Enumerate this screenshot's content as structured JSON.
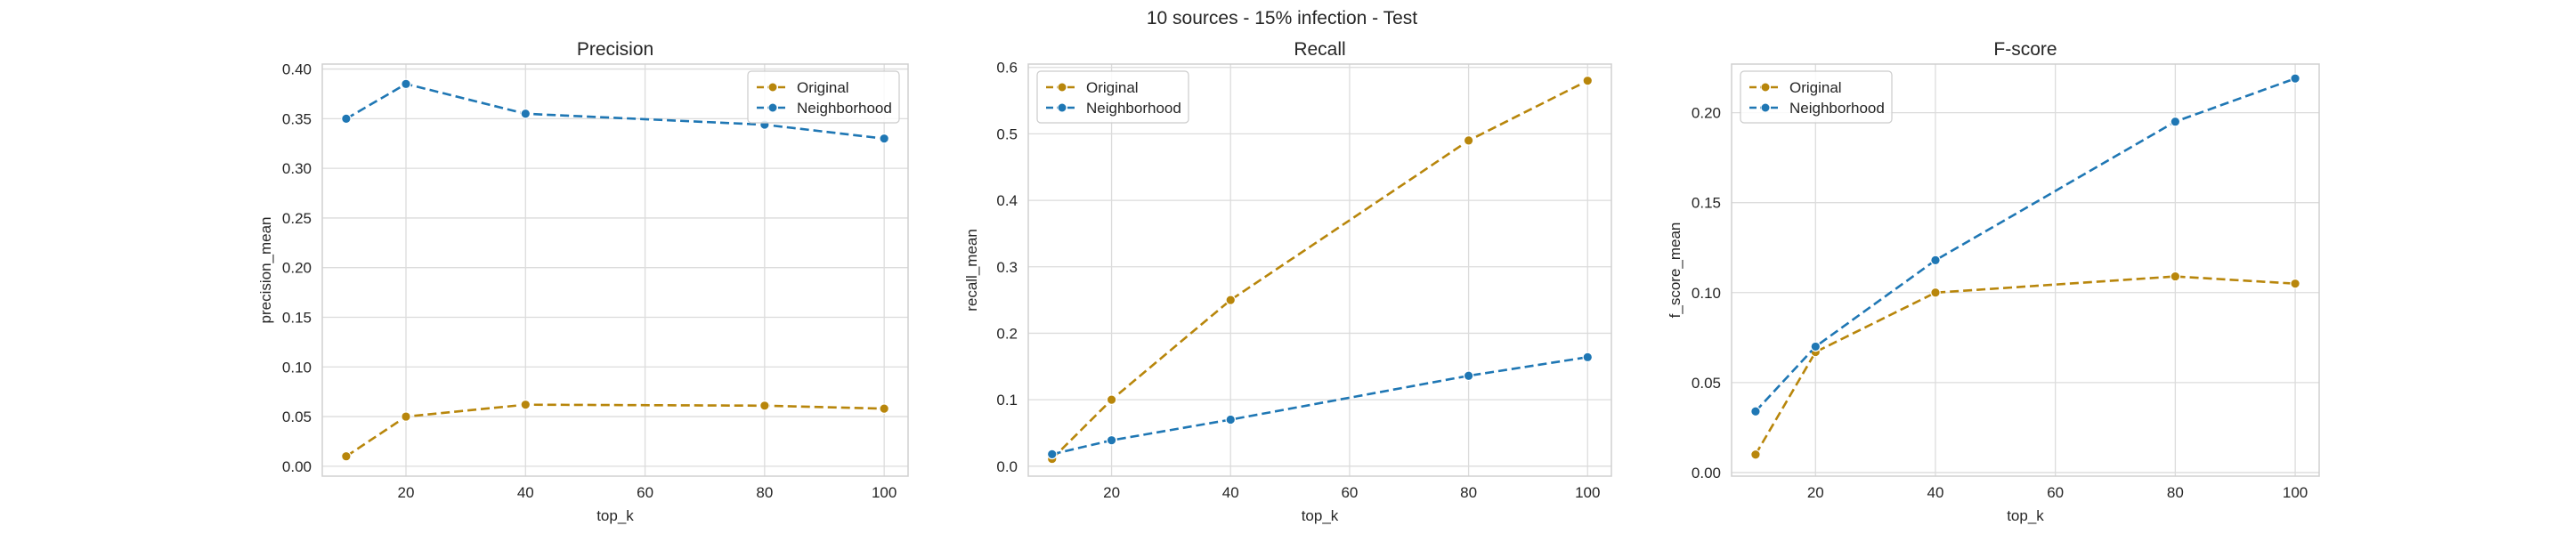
{
  "figure": {
    "suptitle": "10 sources - 15% infection - Test"
  },
  "colors": {
    "Original": "#b8860b",
    "Neighborhood": "#1f77b4",
    "grid": "#dcdcdc",
    "axes_edge": "#d0d0d0"
  },
  "chart_data": [
    {
      "type": "line",
      "title": "Precision",
      "xlabel": "top_k",
      "ylabel": "precision_mean",
      "x": [
        10,
        20,
        40,
        80,
        100
      ],
      "xlim": [
        6,
        104
      ],
      "ylim": [
        -0.01,
        0.405
      ],
      "xticks": [
        20,
        40,
        60,
        80,
        100
      ],
      "yticks": [
        0.0,
        0.05,
        0.1,
        0.15,
        0.2,
        0.25,
        0.3,
        0.35,
        0.4
      ],
      "ytick_labels": [
        "0.00",
        "0.05",
        "0.10",
        "0.15",
        "0.20",
        "0.25",
        "0.30",
        "0.35",
        "0.40"
      ],
      "grid": true,
      "legend": "upper right",
      "series": [
        {
          "name": "Original",
          "values": [
            0.01,
            0.05,
            0.062,
            0.061,
            0.058
          ]
        },
        {
          "name": "Neighborhood",
          "values": [
            0.35,
            0.385,
            0.355,
            0.344,
            0.33
          ]
        }
      ]
    },
    {
      "type": "line",
      "title": "Recall",
      "xlabel": "top_k",
      "ylabel": "recall_mean",
      "x": [
        10,
        20,
        40,
        80,
        100
      ],
      "xlim": [
        6,
        104
      ],
      "ylim": [
        -0.015,
        0.605
      ],
      "xticks": [
        20,
        40,
        60,
        80,
        100
      ],
      "yticks": [
        0.0,
        0.1,
        0.2,
        0.3,
        0.4,
        0.5,
        0.6
      ],
      "ytick_labels": [
        "0.0",
        "0.1",
        "0.2",
        "0.3",
        "0.4",
        "0.5",
        "0.6"
      ],
      "grid": true,
      "legend": "upper left",
      "series": [
        {
          "name": "Original",
          "values": [
            0.011,
            0.1,
            0.25,
            0.49,
            0.58
          ]
        },
        {
          "name": "Neighborhood",
          "values": [
            0.018,
            0.039,
            0.07,
            0.136,
            0.164
          ]
        }
      ]
    },
    {
      "type": "line",
      "title": "F-score",
      "xlabel": "top_k",
      "ylabel": "f_score_mean",
      "x": [
        10,
        20,
        40,
        80,
        100
      ],
      "xlim": [
        6,
        104
      ],
      "ylim": [
        -0.002,
        0.227
      ],
      "xticks": [
        20,
        40,
        60,
        80,
        100
      ],
      "yticks": [
        0.0,
        0.05,
        0.1,
        0.15,
        0.2
      ],
      "ytick_labels": [
        "0.00",
        "0.05",
        "0.10",
        "0.15",
        "0.20"
      ],
      "grid": true,
      "legend": "upper left",
      "series": [
        {
          "name": "Original",
          "values": [
            0.01,
            0.067,
            0.1,
            0.109,
            0.105
          ]
        },
        {
          "name": "Neighborhood",
          "values": [
            0.034,
            0.07,
            0.118,
            0.195,
            0.219
          ]
        }
      ]
    }
  ]
}
